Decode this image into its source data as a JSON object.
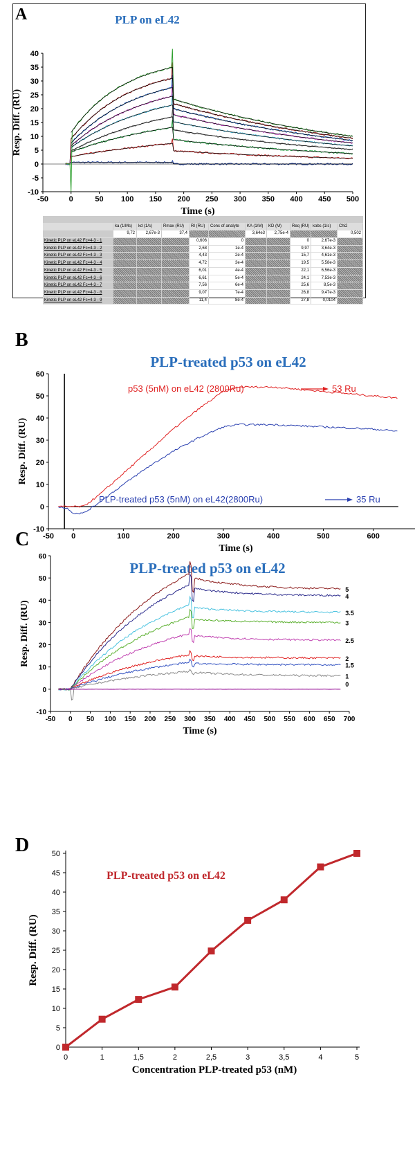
{
  "panels": {
    "A": "A",
    "B": "B",
    "C": "C",
    "D": "D"
  },
  "table": {
    "headers": [
      "",
      "ka (1/Ms)",
      "kd (1/s)",
      "Rmax (RU)",
      "RI (RU)",
      "Conc of analyte",
      "KA (1/M)",
      "KD (M)",
      "Req (RU)",
      "kobs (1/s)",
      "Chi2"
    ],
    "params": {
      "ka": "9,72",
      "kd": "2,67e-3",
      "Rmax": "37,4",
      "KA": "3,64e3",
      "KD": "2,75e-4",
      "Chi2": "0,502"
    },
    "rows": [
      {
        "label": "Kinetic PLP on eL42 Fc=4-3 - 1",
        "RI": "0,606",
        "conc": "0",
        "Req": "0",
        "kobs": "2,67e-3"
      },
      {
        "label": "Kinetic PLP on eL42 Fc=4-3 - 2",
        "RI": "2,68",
        "conc": "1e-4",
        "Req": "9,97",
        "kobs": "3,64e-3"
      },
      {
        "label": "Kinetic PLP on eL42 Fc=4-3 - 3",
        "RI": "4,43",
        "conc": "2e-4",
        "Req": "15,7",
        "kobs": "4,61e-3"
      },
      {
        "label": "Kinetic PLP on eL42 Fc=4-3 - 4",
        "RI": "4,72",
        "conc": "3e-4",
        "Req": "19,5",
        "kobs": "5,58e-3"
      },
      {
        "label": "Kinetic PLP on eL42 Fc=4-3 - 5",
        "RI": "6,01",
        "conc": "4e-4",
        "Req": "22,1",
        "kobs": "6,56e-3"
      },
      {
        "label": "Kinetic PLP on eL42 Fc=4-3 - 6",
        "RI": "6,61",
        "conc": "5e-4",
        "Req": "24,1",
        "kobs": "7,53e-3"
      },
      {
        "label": "Kinetic PLP on eL42 Fc=4-3 - 7",
        "RI": "7,56",
        "conc": "6e-4",
        "Req": "25,6",
        "kobs": "8,5e-3"
      },
      {
        "label": "Kinetic PLP on eL42 Fc=4-3 - 8",
        "RI": "9,07",
        "conc": "7e-4",
        "Req": "26,8",
        "kobs": "9,47e-3"
      },
      {
        "label": "Kinetic PLP on eL42 Fc=4-3 - 9",
        "RI": "11,4",
        "conc": "8e-4",
        "Req": "27,8",
        "kobs": "0,0104"
      }
    ]
  },
  "chart_data": [
    {
      "type": "line",
      "panel": "A",
      "title": "PLP on eL42",
      "xlabel": "Time (s)",
      "ylabel": "Resp. Diff. (RU)",
      "xlim": [
        -50,
        500
      ],
      "ylim": [
        -10,
        40
      ],
      "xticks": [
        -50,
        0,
        50,
        100,
        150,
        200,
        250,
        300,
        350,
        400,
        450,
        500
      ],
      "yticks": [
        -10,
        -5,
        0,
        5,
        10,
        15,
        20,
        25,
        30,
        35,
        40
      ],
      "injection_end": 180,
      "kd": 0.00267,
      "series_colors": [
        "#2040a0",
        "#c02020",
        "#20a040",
        "#7a7a7a",
        "#40b0d0",
        "#c040c0",
        "#2060c0",
        "#a02020",
        "#30a030"
      ],
      "fit_color": "#000000"
    },
    {
      "type": "line",
      "panel": "B",
      "title": "PLP-treated p53 on eL42",
      "xlabel": "Time (s)",
      "ylabel": "Resp. Diff. (RU)",
      "xlim": [
        -50,
        700
      ],
      "ylim": [
        -10,
        60
      ],
      "xticks": [
        -50,
        0,
        100,
        200,
        300,
        400,
        500,
        600,
        700
      ],
      "yticks": [
        -10,
        0,
        10,
        20,
        30,
        40,
        50,
        60
      ],
      "series": [
        {
          "name": "p53 (5nM) on eL42 (2800Ru)",
          "result": "53 Ru",
          "color": "#e02020",
          "points": [
            [
              -30,
              0
            ],
            [
              0,
              0
            ],
            [
              20,
              0
            ],
            [
              50,
              5
            ],
            [
              100,
              15
            ],
            [
              150,
              25
            ],
            [
              200,
              35
            ],
            [
              250,
              44
            ],
            [
              300,
              52
            ],
            [
              330,
              54
            ],
            [
              400,
              54
            ],
            [
              500,
              52
            ],
            [
              600,
              50
            ],
            [
              650,
              49
            ]
          ]
        },
        {
          "name": "PLP-treated p53 (5nM) on eL42(2800Ru)",
          "result": "35 Ru",
          "color": "#2a40b0",
          "points": [
            [
              -30,
              0
            ],
            [
              -10,
              -1
            ],
            [
              0,
              -3
            ],
            [
              20,
              -3
            ],
            [
              40,
              0
            ],
            [
              100,
              10
            ],
            [
              150,
              18
            ],
            [
              200,
              25
            ],
            [
              250,
              31
            ],
            [
              300,
              36
            ],
            [
              330,
              37
            ],
            [
              400,
              37
            ],
            [
              500,
              36
            ],
            [
              600,
              35
            ],
            [
              650,
              34
            ]
          ]
        }
      ]
    },
    {
      "type": "line",
      "panel": "C",
      "title": "PLP-treated p53 on eL42",
      "xlabel": "Time (s)",
      "ylabel": "Resp. Diff. (RU)",
      "xlim": [
        -50,
        700
      ],
      "ylim": [
        -10,
        60
      ],
      "xticks": [
        -50,
        0,
        50,
        100,
        150,
        200,
        250,
        300,
        350,
        400,
        450,
        500,
        550,
        600,
        650,
        700
      ],
      "yticks": [
        -10,
        0,
        10,
        20,
        30,
        40,
        50,
        60
      ],
      "series": [
        {
          "name": "5",
          "color": "#8b1a1a",
          "at_300s": 52,
          "at_680s": 45
        },
        {
          "name": "4",
          "color": "#2b2b8c",
          "at_300s": 47,
          "at_680s": 42
        },
        {
          "name": "3.5",
          "color": "#4cc3e0",
          "at_300s": 38,
          "at_680s": 34.5
        },
        {
          "name": "3",
          "color": "#5cb030",
          "at_300s": 32.5,
          "at_680s": 30
        },
        {
          "name": "2.5",
          "color": "#c040b0",
          "at_300s": 25,
          "at_680s": 22
        },
        {
          "name": "2",
          "color": "#e02020",
          "at_300s": 15.5,
          "at_680s": 14
        },
        {
          "name": "1.5",
          "color": "#3050c0",
          "at_300s": 12,
          "at_680s": 11
        },
        {
          "name": "1",
          "color": "#888888",
          "at_300s": 8,
          "at_680s": 6
        },
        {
          "name": "0",
          "color": "#900090",
          "at_300s": 0,
          "at_680s": 0
        }
      ]
    },
    {
      "type": "line",
      "panel": "D",
      "title": "PLP-treated p53 on eL42",
      "xlabel": "Concentration PLP-treated p53 (nM)",
      "ylabel": "Resp. Diff. (RU)",
      "categories": [
        "0",
        "1",
        "1,5",
        "2",
        "2,5",
        "3",
        "3,5",
        "4",
        "5"
      ],
      "values": [
        0,
        7.2,
        12.3,
        15.5,
        24.8,
        32.7,
        38,
        46.5,
        50
      ],
      "ylim": [
        0,
        50
      ],
      "yticks": [
        0,
        5,
        10,
        15,
        20,
        25,
        30,
        35,
        40,
        45,
        50
      ],
      "color": "#c0282c",
      "marker": "square"
    }
  ]
}
